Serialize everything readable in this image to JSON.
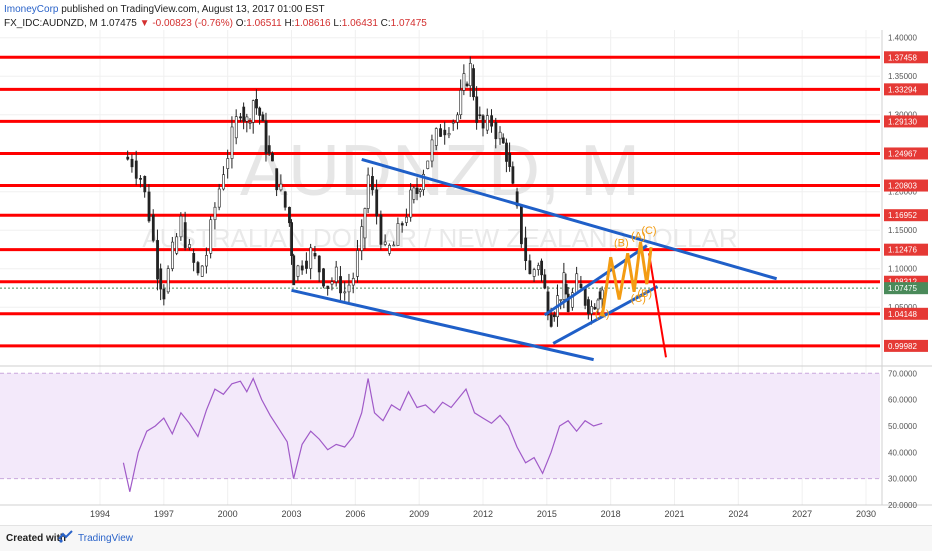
{
  "header": {
    "publisher": "ImoneyCorp",
    "published_on": "published on TradingView.com, August 13, 2017 01:00 EST",
    "symbol": "FX_IDC:AUDNZD, M",
    "last": "1.07475",
    "change": "-0.00823 (-0.76%)",
    "o_label": "O:",
    "o_value": "1.06511",
    "h_label": "H:",
    "h_value": "1.08616",
    "l_label": "L:",
    "l_value": "1.06431",
    "c_label": "C:",
    "c_value": "1.07475"
  },
  "watermark": {
    "symbol": "AUDNZD, M",
    "name": "AUSTRALIAN DOLLAR / NEW ZEALAND DOLLAR"
  },
  "footer": {
    "created_with": "Created with",
    "brand": "TradingView"
  },
  "colors": {
    "support_line": "#ff0000",
    "trendline": "#1f5fc8",
    "wave": "#f39c12",
    "candle": "#222222",
    "rsi_line": "#a05ac8",
    "rsi_band": "#f3e9fa",
    "price_label_bg": "#e53935",
    "current_label_bg": "#4a8a5a"
  },
  "chart_data": [
    {
      "type": "candlestick",
      "xlabels": [
        "1994",
        "1997",
        "2000",
        "2003",
        "2006",
        "2009",
        "2012",
        "2015",
        "2018",
        "2021",
        "2024",
        "2027",
        "2030"
      ],
      "price_axis_ticks": [
        "1.40000",
        "1.35000",
        "1.30000",
        "1.25000",
        "1.20000",
        "1.15000",
        "1.10000",
        "1.05000",
        "1.00000"
      ],
      "ylim": [
        0.975,
        1.41
      ],
      "current_price": "1.07475",
      "horizontal_levels": [
        "1.37458",
        "1.33294",
        "1.29130",
        "1.24967",
        "1.20803",
        "1.16952",
        "1.12476",
        "1.08312",
        "1.04148",
        "0.99982"
      ],
      "price_series": [
        [
          1995.1,
          1.245
        ],
        [
          1995.5,
          1.24
        ],
        [
          1995.9,
          1.22
        ],
        [
          1996.3,
          1.17
        ],
        [
          1996.7,
          1.1
        ],
        [
          1997.0,
          1.07
        ],
        [
          1997.4,
          1.12
        ],
        [
          1997.8,
          1.16
        ],
        [
          1998.2,
          1.12
        ],
        [
          1998.6,
          1.09
        ],
        [
          1999.0,
          1.12
        ],
        [
          1999.4,
          1.18
        ],
        [
          1999.8,
          1.23
        ],
        [
          2000.2,
          1.27
        ],
        [
          2000.6,
          1.31
        ],
        [
          2000.9,
          1.29
        ],
        [
          2001.2,
          1.32
        ],
        [
          2001.5,
          1.3
        ],
        [
          2001.8,
          1.26
        ],
        [
          2002.1,
          1.23
        ],
        [
          2002.5,
          1.2
        ],
        [
          2002.9,
          1.16
        ],
        [
          2003.1,
          1.09
        ],
        [
          2003.5,
          1.11
        ],
        [
          2003.9,
          1.12
        ],
        [
          2004.3,
          1.1
        ],
        [
          2004.7,
          1.08
        ],
        [
          2005.1,
          1.09
        ],
        [
          2005.5,
          1.07
        ],
        [
          2005.9,
          1.09
        ],
        [
          2006.3,
          1.14
        ],
        [
          2006.6,
          1.22
        ],
        [
          2007.0,
          1.17
        ],
        [
          2007.4,
          1.12
        ],
        [
          2007.8,
          1.13
        ],
        [
          2008.2,
          1.16
        ],
        [
          2008.6,
          1.19
        ],
        [
          2008.9,
          1.2
        ],
        [
          2009.2,
          1.23
        ],
        [
          2009.6,
          1.26
        ],
        [
          2010.0,
          1.28
        ],
        [
          2010.4,
          1.29
        ],
        [
          2010.8,
          1.3
        ],
        [
          2011.1,
          1.34
        ],
        [
          2011.4,
          1.36
        ],
        [
          2011.7,
          1.3
        ],
        [
          2012.0,
          1.28
        ],
        [
          2012.4,
          1.29
        ],
        [
          2012.8,
          1.27
        ],
        [
          2013.1,
          1.25
        ],
        [
          2013.4,
          1.2
        ],
        [
          2013.8,
          1.14
        ],
        [
          2014.2,
          1.09
        ],
        [
          2014.6,
          1.11
        ],
        [
          2014.9,
          1.07
        ],
        [
          2015.2,
          1.04
        ],
        [
          2015.5,
          1.06
        ],
        [
          2015.8,
          1.08
        ],
        [
          2016.0,
          1.05
        ],
        [
          2016.4,
          1.08
        ],
        [
          2016.8,
          1.06
        ],
        [
          2017.1,
          1.05
        ],
        [
          2017.4,
          1.07
        ],
        [
          2017.6,
          1.075
        ]
      ],
      "rsi": {
        "ylim": [
          20,
          72
        ],
        "levels": [
          "70.0000",
          "60.0000",
          "50.0000",
          "40.0000",
          "30.0000",
          "20.0000"
        ],
        "overbought": 70,
        "oversold": 30,
        "series": [
          [
            1995.1,
            36
          ],
          [
            1995.4,
            25
          ],
          [
            1995.8,
            40
          ],
          [
            1996.2,
            48
          ],
          [
            1996.6,
            50
          ],
          [
            1997.0,
            53
          ],
          [
            1997.4,
            47
          ],
          [
            1997.8,
            55
          ],
          [
            1998.2,
            51
          ],
          [
            1998.6,
            46
          ],
          [
            1999.0,
            56
          ],
          [
            1999.4,
            64
          ],
          [
            1999.8,
            62
          ],
          [
            2000.2,
            66
          ],
          [
            2000.6,
            67
          ],
          [
            2000.9,
            63
          ],
          [
            2001.2,
            68
          ],
          [
            2001.6,
            60
          ],
          [
            2002.0,
            54
          ],
          [
            2002.4,
            49
          ],
          [
            2002.8,
            44
          ],
          [
            2003.1,
            30
          ],
          [
            2003.5,
            43
          ],
          [
            2003.9,
            48
          ],
          [
            2004.3,
            45
          ],
          [
            2004.7,
            41
          ],
          [
            2005.1,
            43
          ],
          [
            2005.5,
            42
          ],
          [
            2005.9,
            46
          ],
          [
            2006.3,
            55
          ],
          [
            2006.6,
            68
          ],
          [
            2006.9,
            55
          ],
          [
            2007.3,
            52
          ],
          [
            2007.7,
            58
          ],
          [
            2008.1,
            56
          ],
          [
            2008.5,
            63
          ],
          [
            2008.9,
            57
          ],
          [
            2009.3,
            58
          ],
          [
            2009.7,
            55
          ],
          [
            2010.1,
            59
          ],
          [
            2010.5,
            57
          ],
          [
            2010.9,
            61
          ],
          [
            2011.2,
            64
          ],
          [
            2011.6,
            55
          ],
          [
            2012.0,
            53
          ],
          [
            2012.4,
            51
          ],
          [
            2012.8,
            54
          ],
          [
            2013.2,
            50
          ],
          [
            2013.6,
            42
          ],
          [
            2014.0,
            36
          ],
          [
            2014.4,
            38
          ],
          [
            2014.8,
            32
          ],
          [
            2015.2,
            40
          ],
          [
            2015.6,
            50
          ],
          [
            2016.0,
            52
          ],
          [
            2016.4,
            48
          ],
          [
            2016.8,
            52
          ],
          [
            2017.2,
            50
          ],
          [
            2017.6,
            51
          ]
        ]
      },
      "annotations": [
        {
          "text": "(A)",
          "x": 2017.6,
          "y": 1.037
        },
        {
          "text": "(B)",
          "x": 2018.5,
          "y": 1.129
        },
        {
          "text": "(C)",
          "x": 2019.3,
          "y": 1.057
        },
        {
          "text": "(B)",
          "x": 2019.6,
          "y": 1.063
        },
        {
          "text": "(A)",
          "x": 2019.3,
          "y": 1.138
        },
        {
          "text": "(C)",
          "x": 2019.8,
          "y": 1.145
        }
      ]
    }
  ]
}
